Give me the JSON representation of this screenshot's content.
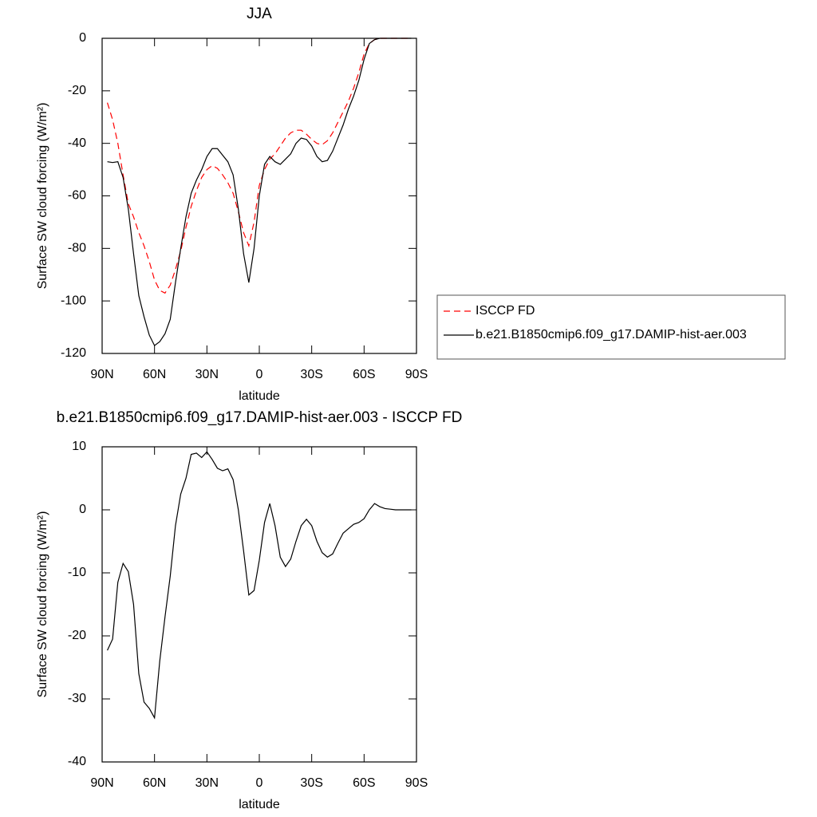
{
  "chart_data": [
    {
      "type": "line",
      "title": "JJA",
      "xlabel": "latitude",
      "ylabel": "Surface SW cloud forcing (W/m²)",
      "x": [
        87,
        84,
        81,
        78,
        75,
        72,
        69,
        66,
        63,
        60,
        57,
        54,
        51,
        48,
        45,
        42,
        39,
        36,
        33,
        30,
        27,
        24,
        21,
        18,
        15,
        12,
        9,
        6,
        3,
        0,
        -3,
        -6,
        -9,
        -12,
        -15,
        -18,
        -21,
        -24,
        -27,
        -30,
        -33,
        -36,
        -39,
        -42,
        -45,
        -48,
        -51,
        -54,
        -57,
        -60,
        -63,
        -66,
        -69,
        -72,
        -75,
        -78,
        -81,
        -84,
        -87
      ],
      "series": [
        {
          "name": "ISCCP FD",
          "color": "#ff0000",
          "linestyle": "dashed",
          "values": [
            -24.5,
            -31,
            -40,
            -52,
            -63,
            -68,
            -74,
            -79,
            -85,
            -92,
            -96,
            -97,
            -94,
            -88,
            -81,
            -72,
            -64,
            -58,
            -53,
            -50,
            -48.5,
            -49.5,
            -52,
            -55,
            -59,
            -66,
            -74,
            -79,
            -70,
            -56,
            -50,
            -46,
            -44,
            -41,
            -38,
            -36,
            -35,
            -35,
            -36.5,
            -38.5,
            -40,
            -40.5,
            -39,
            -36,
            -32,
            -28,
            -24,
            -19,
            -13,
            -6,
            -2,
            -0.5,
            0,
            0,
            0,
            0,
            0,
            0,
            0
          ]
        },
        {
          "name": "b.e21.B1850cmip6.f09_g17.DAMIP-hist-aer.003",
          "color": "#000000",
          "linestyle": "solid",
          "values": [
            -47,
            -47.3,
            -47,
            -53,
            -65,
            -82,
            -98,
            -106,
            -113,
            -117,
            -115.5,
            -112.5,
            -107,
            -93,
            -80,
            -68,
            -59,
            -54,
            -50,
            -45,
            -42,
            -42,
            -44.5,
            -47,
            -52,
            -65,
            -82,
            -93,
            -80,
            -60,
            -48,
            -45,
            -47,
            -48,
            -46,
            -44,
            -40,
            -38,
            -38.5,
            -41,
            -45,
            -47,
            -46.5,
            -43,
            -38,
            -33,
            -27,
            -22,
            -16,
            -8,
            -2,
            -0.5,
            0,
            0,
            0,
            0,
            0,
            0,
            0
          ]
        }
      ],
      "xlim": [
        90,
        -90
      ],
      "xticks": [
        {
          "value": 90,
          "label": "90N"
        },
        {
          "value": 60,
          "label": "60N"
        },
        {
          "value": 30,
          "label": "30N"
        },
        0,
        {
          "value": -30,
          "label": "30S"
        },
        {
          "value": -60,
          "label": "60S"
        },
        {
          "value": -90,
          "label": "90S"
        }
      ],
      "ylim": [
        -120,
        0
      ],
      "yticks": [
        -120,
        -100,
        -80,
        -60,
        -40,
        -20,
        0
      ],
      "legend": "right"
    },
    {
      "type": "line",
      "title": "b.e21.B1850cmip6.f09_g17.DAMIP-hist-aer.003 - ISCCP FD",
      "xlabel": "latitude",
      "ylabel": "Surface SW cloud forcing (W/m²)",
      "x": [
        87,
        84,
        81,
        78,
        75,
        72,
        69,
        66,
        63,
        60,
        57,
        54,
        51,
        48,
        45,
        42,
        39,
        36,
        33,
        30,
        27,
        24,
        21,
        18,
        15,
        12,
        9,
        6,
        3,
        0,
        -3,
        -6,
        -9,
        -12,
        -15,
        -18,
        -21,
        -24,
        -27,
        -30,
        -33,
        -36,
        -39,
        -42,
        -45,
        -48,
        -51,
        -54,
        -57,
        -60,
        -63,
        -66,
        -69,
        -72,
        -75,
        -78,
        -81,
        -84,
        -87
      ],
      "values": [
        -22.3,
        -20.5,
        -11.5,
        -8.5,
        -9.8,
        -15,
        -26,
        -30.5,
        -31.5,
        -33,
        -24,
        -17,
        -10.5,
        -2.5,
        2.5,
        5,
        8.8,
        9,
        8.3,
        9.2,
        8,
        6.6,
        6.2,
        6.5,
        4.8,
        0,
        -6.5,
        -13.5,
        -12.8,
        -8,
        -2,
        1,
        -2.5,
        -7.5,
        -9,
        -7.8,
        -5,
        -2.5,
        -1.5,
        -2.5,
        -5,
        -6.8,
        -7.5,
        -7,
        -5.3,
        -3.7,
        -3,
        -2.3,
        -2,
        -1.4,
        0,
        1,
        0.5,
        0.2,
        0.1,
        0,
        0,
        0,
        0
      ],
      "color": "#000000",
      "xlim": [
        90,
        -90
      ],
      "xticks": [
        {
          "value": 90,
          "label": "90N"
        },
        {
          "value": 60,
          "label": "60N"
        },
        {
          "value": 30,
          "label": "30N"
        },
        0,
        {
          "value": -30,
          "label": "30S"
        },
        {
          "value": -60,
          "label": "60S"
        },
        {
          "value": -90,
          "label": "90S"
        }
      ],
      "ylim": [
        -40,
        10
      ],
      "yticks": [
        -40,
        -30,
        -20,
        -10,
        0,
        10
      ],
      "legend": false
    }
  ]
}
